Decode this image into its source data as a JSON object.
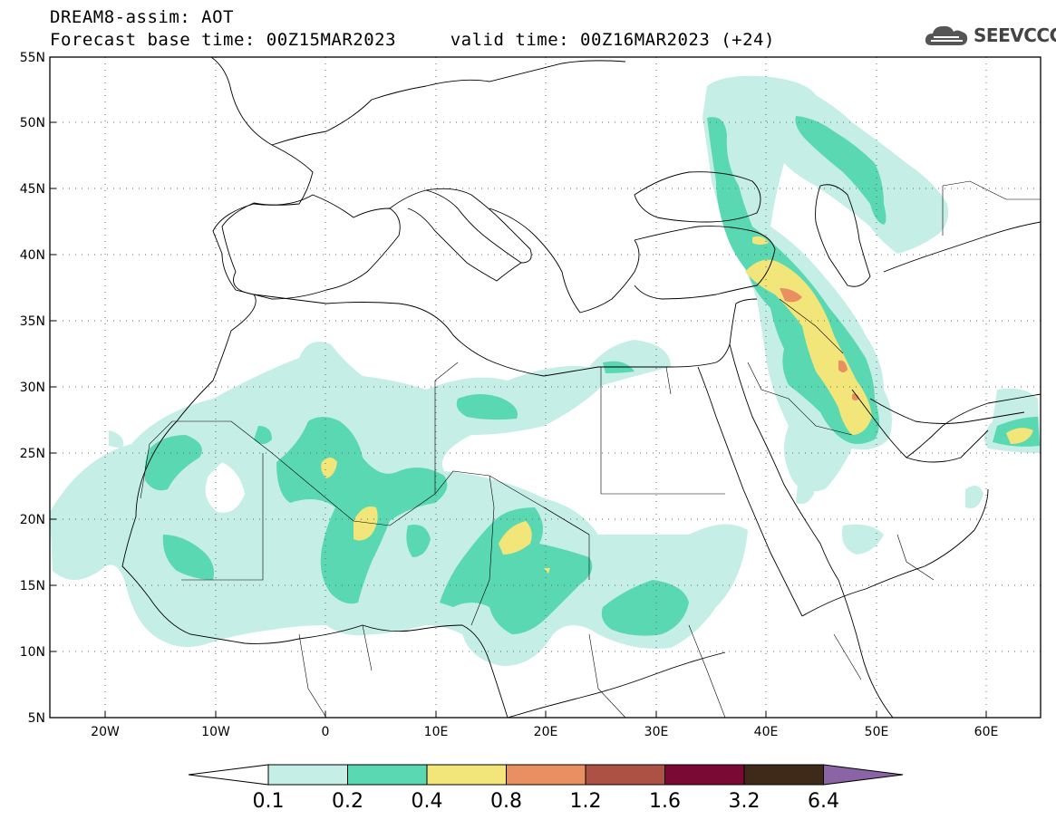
{
  "header": {
    "title_line1": "DREAM8-assim: AOT",
    "title_line2": "Forecast base time: 00Z15MAR2023     valid time: 00Z16MAR2023 (+24)",
    "logo_text": "SEEVCCC"
  },
  "map": {
    "lat_ticks": [
      "55N",
      "50N",
      "45N",
      "40N",
      "35N",
      "30N",
      "25N",
      "20N",
      "15N",
      "10N",
      "5N"
    ],
    "lon_ticks": [
      "20W",
      "10W",
      "0",
      "10E",
      "20E",
      "30E",
      "40E",
      "50E",
      "60E"
    ]
  },
  "colorbar": {
    "levels": [
      "0.1",
      "0.2",
      "0.4",
      "0.8",
      "1.2",
      "1.6",
      "3.2",
      "6.4"
    ],
    "colors": [
      "#ffffff",
      "#c4eee6",
      "#5ad8b2",
      "#f2e57a",
      "#e98f62",
      "#ad5144",
      "#7a0a33",
      "#3f2a1a",
      "#8a64a4"
    ]
  }
}
